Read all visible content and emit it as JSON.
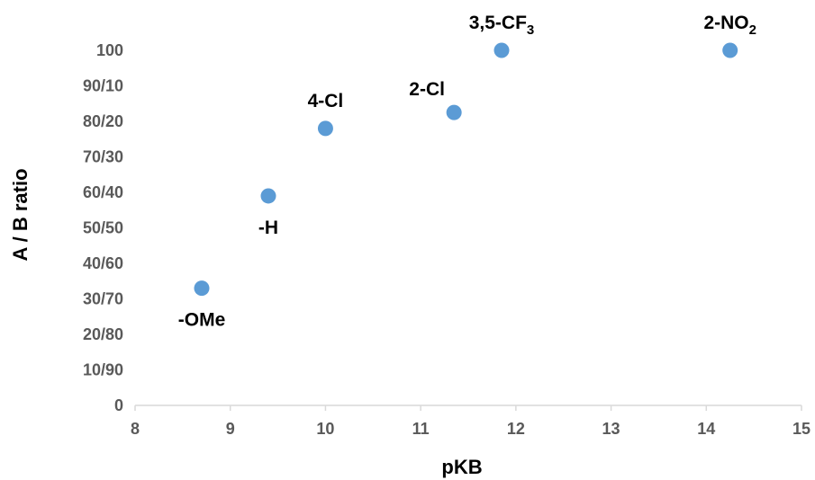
{
  "chart_data": {
    "type": "scatter",
    "title": "",
    "xlabel": "pKB",
    "ylabel": "A / B ratio",
    "xlim": [
      8,
      15
    ],
    "ylim": [
      0,
      100
    ],
    "x_ticks": [
      8,
      9,
      10,
      11,
      12,
      13,
      14,
      15
    ],
    "y_ticks": [
      {
        "value": 0,
        "label": "0"
      },
      {
        "value": 10,
        "label": "10/90"
      },
      {
        "value": 20,
        "label": "20/80"
      },
      {
        "value": 30,
        "label": "30/70"
      },
      {
        "value": 40,
        "label": "40/60"
      },
      {
        "value": 50,
        "label": "50/50"
      },
      {
        "value": 60,
        "label": "60/40"
      },
      {
        "value": 70,
        "label": "70/30"
      },
      {
        "value": 80,
        "label": "80/20"
      },
      {
        "value": 90,
        "label": "90/10"
      },
      {
        "value": 100,
        "label": "100"
      }
    ],
    "grid": false,
    "legend": "none",
    "marker_color": "#5B9BD5",
    "points": [
      {
        "x": 8.7,
        "y": 33,
        "label": "-OMe",
        "label_sub": "",
        "label_pos": "below"
      },
      {
        "x": 9.4,
        "y": 59,
        "label": "-H",
        "label_sub": "",
        "label_pos": "below"
      },
      {
        "x": 10.0,
        "y": 78,
        "label": "4-Cl",
        "label_sub": "",
        "label_pos": "above"
      },
      {
        "x": 11.35,
        "y": 82.5,
        "label": "2-Cl",
        "label_sub": "",
        "label_pos": "upper-left"
      },
      {
        "x": 11.85,
        "y": 100,
        "label": "3,5-CF",
        "label_sub": "3",
        "label_pos": "above"
      },
      {
        "x": 14.25,
        "y": 100,
        "label": "2-NO",
        "label_sub": "2",
        "label_pos": "above"
      }
    ]
  }
}
